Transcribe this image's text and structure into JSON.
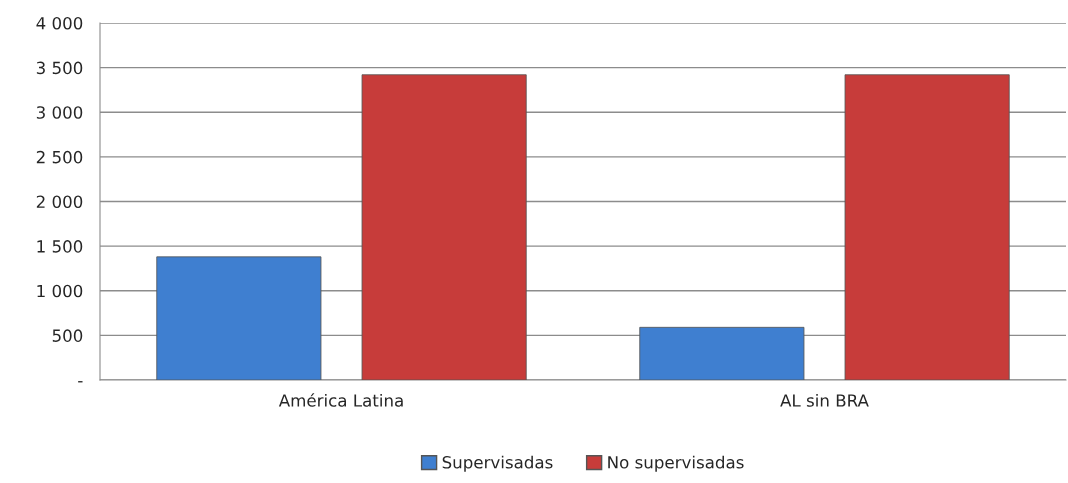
{
  "chart_data": {
    "type": "bar",
    "categories": [
      "América Latina",
      "AL sin BRA"
    ],
    "series": [
      {
        "name": "Supervisadas",
        "color": "#3f7fd0",
        "values": [
          1380,
          590
        ]
      },
      {
        "name": "No supervisadas",
        "color": "#c73c3a",
        "values": [
          3420,
          3420
        ]
      }
    ],
    "ylim": [
      0,
      4000
    ],
    "yticks": [
      {
        "value": 0,
        "label": "-"
      },
      500,
      {
        "value": 1000,
        "label": "1 000"
      },
      {
        "value": 1500,
        "label": "1 500"
      },
      {
        "value": 2000,
        "label": "2 000"
      },
      {
        "value": 2500,
        "label": "2 500"
      },
      {
        "value": 3000,
        "label": "3 000"
      },
      {
        "value": 3500,
        "label": "3 500"
      },
      {
        "value": 4000,
        "label": "4 000"
      }
    ],
    "grid": "y",
    "legend": "bottom"
  }
}
